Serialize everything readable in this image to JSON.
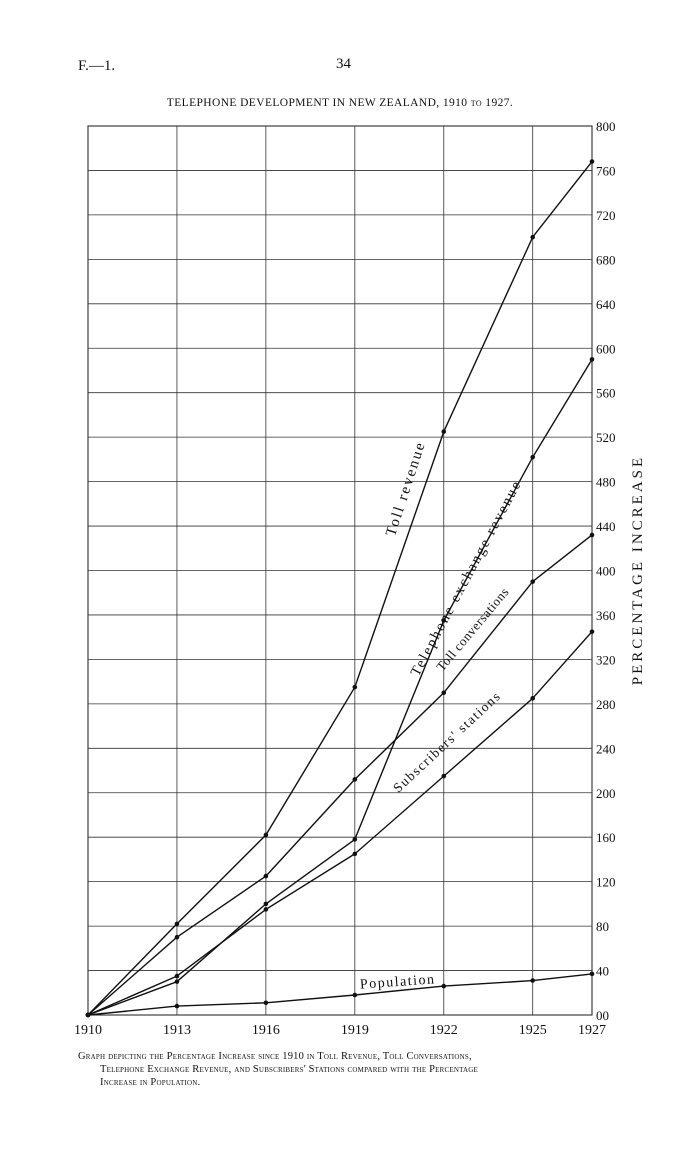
{
  "header": {
    "ref": "F.—1.",
    "page_number": "34"
  },
  "chart_data": {
    "type": "line",
    "title": "TELEPHONE DEVELOPMENT IN NEW ZEALAND, 1910 to 1927.",
    "ylabel": "PERCENTAGE INCREASE",
    "xlabel": "",
    "x": [
      1910,
      1913,
      1916,
      1919,
      1922,
      1925,
      1927
    ],
    "x_tick_labels": [
      "1910",
      "1913",
      "1916",
      "1919",
      "1922",
      "1925",
      "1927"
    ],
    "xlim": [
      1910,
      1927
    ],
    "ylim": [
      0,
      800
    ],
    "y_ticks": [
      0,
      40,
      80,
      120,
      160,
      200,
      240,
      280,
      320,
      360,
      400,
      440,
      480,
      520,
      560,
      600,
      640,
      680,
      720,
      760,
      800
    ],
    "y_tick_labels": [
      "00",
      "40",
      "80",
      "120",
      "160",
      "200",
      "240",
      "280",
      "320",
      "360",
      "400",
      "440",
      "480",
      "520",
      "560",
      "600",
      "640",
      "680",
      "720",
      "760",
      "800"
    ],
    "y_axis_side": "right",
    "grid": true,
    "series": [
      {
        "name": "Toll revenue",
        "x": [
          1910,
          1913,
          1916,
          1919,
          1922,
          1925,
          1927
        ],
        "values": [
          0,
          82,
          162,
          295,
          525,
          700,
          768
        ]
      },
      {
        "name": "Telephone exchange revenue",
        "x": [
          1910,
          1913,
          1916,
          1919,
          1922,
          1925,
          1927
        ],
        "values": [
          0,
          30,
          100,
          158,
          355,
          502,
          590
        ]
      },
      {
        "name": "Toll conversations",
        "x": [
          1910,
          1913,
          1916,
          1919,
          1922,
          1925,
          1927
        ],
        "values": [
          0,
          70,
          125,
          212,
          290,
          390,
          432
        ]
      },
      {
        "name": "Subscribers' stations",
        "x": [
          1910,
          1913,
          1916,
          1919,
          1922,
          1925,
          1927
        ],
        "values": [
          0,
          35,
          95,
          145,
          215,
          285,
          345
        ]
      },
      {
        "name": "Population",
        "x": [
          1910,
          1913,
          1916,
          1919,
          1922,
          1925,
          1927
        ],
        "values": [
          0,
          8,
          11,
          18,
          26,
          31,
          37
        ]
      }
    ],
    "series_labels_on_chart": [
      "Toll revenue",
      "Telephone exchange revenue",
      "Toll conversations",
      "Subscribers' stations",
      "Population"
    ]
  },
  "caption": {
    "line1": "Graph depicting the Percentage Increase since 1910 in Toll Revenue, Toll Conversations,",
    "line2": "Telephone Exchange Revenue, and Subscribers' Stations compared with the Percentage",
    "line3": "Increase in Population."
  }
}
